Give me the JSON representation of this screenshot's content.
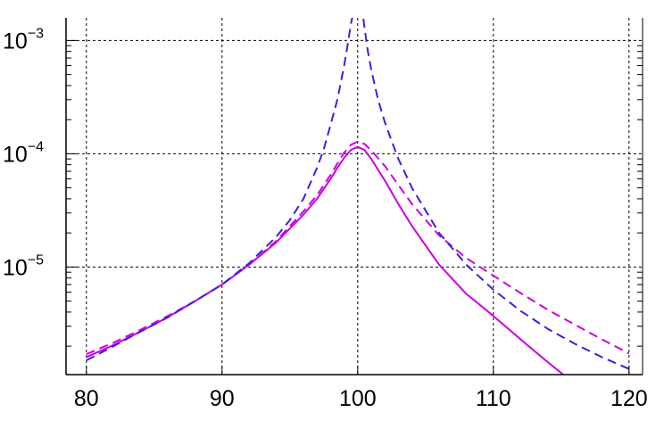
{
  "chart_data": {
    "type": "line",
    "title": "",
    "xlabel": "",
    "ylabel": "",
    "xlim": [
      78.5,
      121
    ],
    "ylim_log10": [
      -5.95,
      -2.8
    ],
    "y_scale": "log",
    "grid": true,
    "x_ticks": [
      {
        "value": 80,
        "label": "80"
      },
      {
        "value": 90,
        "label": "90"
      },
      {
        "value": 100,
        "label": "100"
      },
      {
        "value": 110,
        "label": "110"
      },
      {
        "value": 120,
        "label": "120"
      }
    ],
    "y_ticks": [
      {
        "value": 0.001,
        "base": "10",
        "exp": "−3"
      },
      {
        "value": 0.0001,
        "base": "10",
        "exp": "−4"
      },
      {
        "value": 1e-05,
        "base": "10",
        "exp": "−5"
      }
    ],
    "series": [
      {
        "color": "#cc00e0",
        "dash": "solid",
        "x": [
          80,
          82,
          84,
          86,
          88,
          90,
          92,
          94,
          96,
          97,
          98,
          98.5,
          99,
          99.5,
          100,
          100.5,
          101,
          102,
          103,
          104,
          106,
          108,
          110,
          112,
          114,
          116
        ],
        "y": [
          1.6e-06,
          2.05e-06,
          2.7e-06,
          3.6e-06,
          5e-06,
          7e-06,
          1.05e-05,
          1.65e-05,
          2.9e-05,
          4e-05,
          6e-05,
          7.5e-05,
          9.2e-05,
          0.000108,
          0.000115,
          0.000108,
          9e-05,
          5.8e-05,
          3.6e-05,
          2.3e-05,
          1.05e-05,
          5.8e-06,
          3.7e-06,
          2.3e-06,
          1.45e-06,
          9.3e-07
        ]
      },
      {
        "color": "#cc00e0",
        "dash": "dashed",
        "x": [
          80,
          82,
          84,
          86,
          88,
          90,
          92,
          94,
          96,
          97,
          98,
          98.5,
          99,
          99.5,
          100,
          100.5,
          101,
          102,
          103,
          104,
          106,
          108,
          110,
          112,
          114,
          116,
          118,
          120
        ],
        "y": [
          1.7e-06,
          2.15e-06,
          2.8e-06,
          3.7e-06,
          5e-06,
          7e-06,
          1.05e-05,
          1.7e-05,
          3.1e-05,
          4.3e-05,
          6.5e-05,
          8.2e-05,
          0.000102,
          0.00012,
          0.000128,
          0.000122,
          0.000107,
          7.8e-05,
          5.3e-05,
          3.6e-05,
          1.9e-05,
          1.2e-05,
          8.4e-06,
          5.9e-06,
          4.2e-06,
          3.1e-06,
          2.3e-06,
          1.72e-06
        ]
      },
      {
        "color": "#3a1fe0",
        "dash": "dashed",
        "x": [
          80,
          82,
          84,
          86,
          88,
          90,
          92,
          94,
          95,
          96,
          97,
          97.5,
          98,
          98.5,
          99,
          99.25,
          99.5,
          99.7,
          100.35,
          100.5,
          100.75,
          101,
          101.5,
          102,
          102.5,
          103,
          104,
          106,
          108,
          110,
          112,
          114,
          116,
          118,
          120
        ],
        "y": [
          1.5e-06,
          2e-06,
          2.7e-06,
          3.6e-06,
          5e-06,
          7e-06,
          1.08e-05,
          1.85e-05,
          2.6e-05,
          4e-05,
          7.5e-05,
          0.00011,
          0.00018,
          0.0003,
          0.0006,
          0.0009,
          0.0014,
          0.0018,
          0.0018,
          0.0013,
          0.0008,
          0.00055,
          0.0003,
          0.00019,
          0.00013,
          9e-05,
          5e-05,
          2e-05,
          1.05e-05,
          6.3e-06,
          4.1e-06,
          2.85e-06,
          2.1e-06,
          1.6e-06,
          1.26e-06
        ]
      }
    ]
  }
}
